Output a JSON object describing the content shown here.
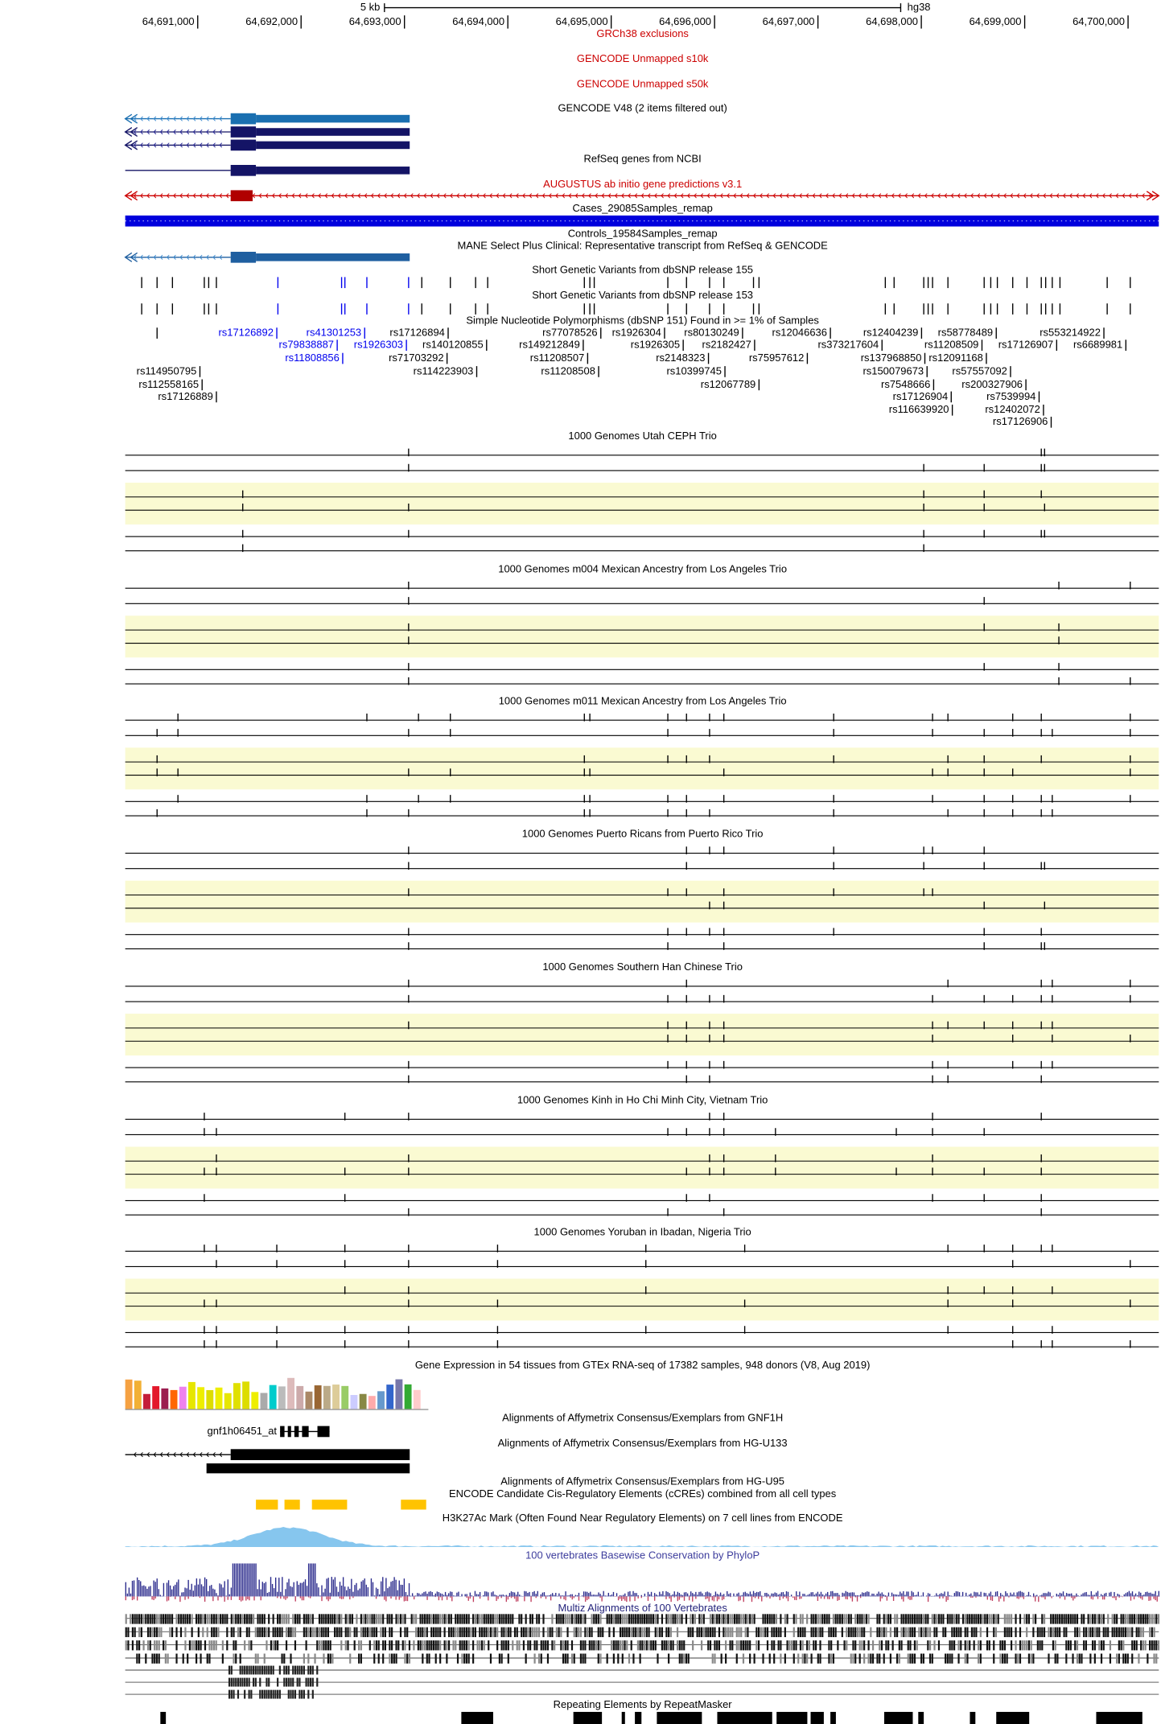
{
  "ruler": {
    "scale_label": "5 kb",
    "assembly": "hg38",
    "ticks": [
      {
        "value": 64691000,
        "label": "64,691,000"
      },
      {
        "value": 64692000,
        "label": "64,692,000"
      },
      {
        "value": 64693000,
        "label": "64,693,000"
      },
      {
        "value": 64694000,
        "label": "64,694,000"
      },
      {
        "value": 64695000,
        "label": "64,695,000"
      },
      {
        "value": 64696000,
        "label": "64,696,000"
      },
      {
        "value": 64697000,
        "label": "64,697,000"
      },
      {
        "value": 64698000,
        "label": "64,698,000"
      },
      {
        "value": 64699000,
        "label": "64,699,000"
      },
      {
        "value": 64700000,
        "label": "64,700,000"
      }
    ]
  },
  "tracks": [
    {
      "title": "GRCh38 exclusions",
      "color": "#cc0000"
    },
    {
      "title": "GENCODE Unmapped s10k",
      "color": "#cc0000"
    },
    {
      "title": "GENCODE Unmapped s50k",
      "color": "#cc0000"
    },
    {
      "title": "GENCODE V48 (2 items filtered out)",
      "color": "#000000"
    },
    {
      "title": "RefSeq genes from NCBI",
      "color": "#000000"
    },
    {
      "title": "AUGUSTUS ab initio gene predictions v3.1",
      "color": "#cc0000"
    },
    {
      "title": "Cases_29085Samples_remap",
      "color": "#000000"
    },
    {
      "title": "Controls_19584Samples_remap",
      "color": "#000000"
    },
    {
      "title": "MANE Select Plus Clinical: Representative transcript from RefSeq & GENCODE",
      "color": "#000000"
    },
    {
      "title": "Short Genetic Variants from dbSNP release 155",
      "color": "#000000"
    },
    {
      "title": "Short Genetic Variants from dbSNP release 153",
      "color": "#000000"
    },
    {
      "title": "Simple Nucleotide Polymorphisms (dbSNP 151) Found in >= 1% of Samples",
      "color": "#000000"
    },
    {
      "title": "1000 Genomes Utah CEPH Trio",
      "color": "#000000"
    },
    {
      "title": "1000 Genomes m004 Mexican Ancestry from Los Angeles Trio",
      "color": "#000000"
    },
    {
      "title": "1000 Genomes m011 Mexican Ancestry from Los Angeles Trio",
      "color": "#000000"
    },
    {
      "title": "1000 Genomes Puerto Ricans from Puerto Rico Trio",
      "color": "#000000"
    },
    {
      "title": "1000 Genomes Southern Han Chinese Trio",
      "color": "#000000"
    },
    {
      "title": "1000 Genomes Kinh in Ho Chi Minh City, Vietnam Trio",
      "color": "#000000"
    },
    {
      "title": "1000 Genomes Yoruban in Ibadan, Nigeria Trio",
      "color": "#000000"
    },
    {
      "title": "Gene Expression in 54 tissues from GTEx RNA-seq of 17382 samples, 948 donors (V8, Aug 2019)",
      "color": "#000000"
    },
    {
      "title": "Alignments of Affymetrix Consensus/Exemplars from GNF1H",
      "color": "#000000"
    },
    {
      "title": "Alignments of Affymetrix Consensus/Exemplars from HG-U133",
      "color": "#000000"
    },
    {
      "title": "Alignments of Affymetrix Consensus/Exemplars from HG-U95",
      "color": "#000000"
    },
    {
      "title": "ENCODE Candidate Cis-Regulatory Elements (cCREs) combined from all cell types",
      "color": "#000000"
    },
    {
      "title": "H3K27Ac Mark (Often Found Near Regulatory Elements) on 7 cell lines from ENCODE",
      "color": "#000000"
    },
    {
      "title": "100 vertebrates Basewise Conservation by PhyloP",
      "color": "#3c3c9c"
    },
    {
      "title": "Multiz Alignments of 100 Vertebrates",
      "color": "#24247c"
    },
    {
      "title": "Repeating Elements by RepeatMasker",
      "color": "#000000"
    }
  ],
  "probe_label": "gnf1h06451_at",
  "snps": [
    {
      "label": "rs17126892",
      "color": "#0000ee"
    },
    {
      "label": "rs41301253",
      "color": "#0000ee"
    },
    {
      "label": "rs17126894",
      "color": "#000000"
    },
    {
      "label": "rs77078526",
      "color": "#000000"
    },
    {
      "label": "rs1926304",
      "color": "#000000"
    },
    {
      "label": "rs80130249",
      "color": "#000000"
    },
    {
      "label": "rs12046636",
      "color": "#000000"
    },
    {
      "label": "rs12404239",
      "color": "#000000"
    },
    {
      "label": "rs58778489",
      "color": "#000000"
    },
    {
      "label": "rs553214922",
      "color": "#000000"
    },
    {
      "label": "rs79838887",
      "color": "#0000ee"
    },
    {
      "label": "rs1926303",
      "color": "#0000ee"
    },
    {
      "label": "rs140120855",
      "color": "#000000"
    },
    {
      "label": "rs149212849",
      "color": "#000000"
    },
    {
      "label": "rs1926305",
      "color": "#000000"
    },
    {
      "label": "rs2182427",
      "color": "#000000"
    },
    {
      "label": "rs373217604",
      "color": "#000000"
    },
    {
      "label": "rs11208509",
      "color": "#000000"
    },
    {
      "label": "rs17126907",
      "color": "#000000"
    },
    {
      "label": "rs6689981",
      "color": "#000000"
    },
    {
      "label": "rs11808856",
      "color": "#0000ee"
    },
    {
      "label": "rs71703292",
      "color": "#000000"
    },
    {
      "label": "rs11208507",
      "color": "#000000"
    },
    {
      "label": "rs2148323",
      "color": "#000000"
    },
    {
      "label": "rs75957612",
      "color": "#000000"
    },
    {
      "label": "rs137968850",
      "color": "#000000"
    },
    {
      "label": "rs12091168",
      "color": "#000000"
    },
    {
      "label": "rs114950795",
      "color": "#000000"
    },
    {
      "label": "rs114223903",
      "color": "#000000"
    },
    {
      "label": "rs11208508",
      "color": "#000000"
    },
    {
      "label": "rs10399745",
      "color": "#000000"
    },
    {
      "label": "rs150079673",
      "color": "#000000"
    },
    {
      "label": "rs57557092",
      "color": "#000000"
    },
    {
      "label": "rs112558165",
      "color": "#000000"
    },
    {
      "label": "rs12067789",
      "color": "#000000"
    },
    {
      "label": "rs7548666",
      "color": "#000000"
    },
    {
      "label": "rs200327906",
      "color": "#000000"
    },
    {
      "label": "rs17126889",
      "color": "#000000"
    },
    {
      "label": "rs17126904",
      "color": "#000000"
    },
    {
      "label": "rs7539994",
      "color": "#000000"
    },
    {
      "label": "rs116639920",
      "color": "#000000"
    },
    {
      "label": "rs12402072",
      "color": "#000000"
    },
    {
      "label": "rs17126906",
      "color": "#000000"
    }
  ]
}
